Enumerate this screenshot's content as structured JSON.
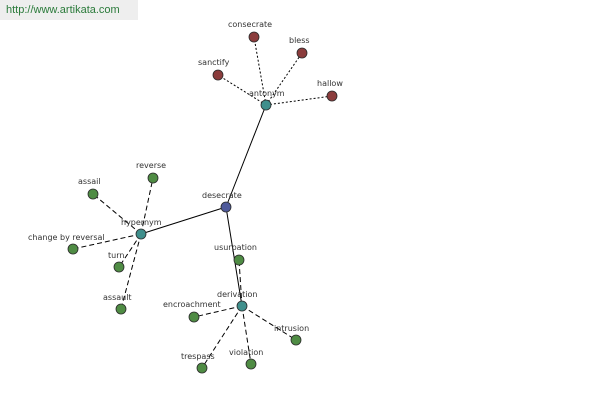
{
  "site": {
    "url": "http://www.artikata.com"
  },
  "colors": {
    "center": "#4f5a9b",
    "relation": "#3f8f8c",
    "green_leaf": "#4f8c44",
    "red_leaf": "#8b3c3c"
  },
  "graph": {
    "center": {
      "id": "desecrate",
      "label": "desecrate"
    },
    "relations": [
      {
        "id": "antonym",
        "label": "antonym"
      },
      {
        "id": "hypernym",
        "label": "hypernym"
      },
      {
        "id": "derivation",
        "label": "derivation"
      }
    ],
    "leaves": [
      {
        "id": "consecrate",
        "label": "consecrate",
        "parent": "antonym",
        "color": "red"
      },
      {
        "id": "bless",
        "label": "bless",
        "parent": "antonym",
        "color": "red"
      },
      {
        "id": "sanctify",
        "label": "sanctify",
        "parent": "antonym",
        "color": "red"
      },
      {
        "id": "hallow",
        "label": "hallow",
        "parent": "antonym",
        "color": "red"
      },
      {
        "id": "reverse",
        "label": "reverse",
        "parent": "hypernym",
        "color": "green"
      },
      {
        "id": "assail",
        "label": "assail",
        "parent": "hypernym",
        "color": "green"
      },
      {
        "id": "change-by-reversal",
        "label": "change by reversal",
        "parent": "hypernym",
        "color": "green"
      },
      {
        "id": "turn",
        "label": "turn",
        "parent": "hypernym",
        "color": "green"
      },
      {
        "id": "assault",
        "label": "assault",
        "parent": "hypernym",
        "color": "green"
      },
      {
        "id": "usurpation",
        "label": "usurpation",
        "parent": "derivation",
        "color": "green"
      },
      {
        "id": "encroachment",
        "label": "encroachment",
        "parent": "derivation",
        "color": "green"
      },
      {
        "id": "intrusion",
        "label": "intrusion",
        "parent": "derivation",
        "color": "green"
      },
      {
        "id": "trespass",
        "label": "trespass",
        "parent": "derivation",
        "color": "green"
      },
      {
        "id": "violation",
        "label": "violation",
        "parent": "derivation",
        "color": "green"
      }
    ]
  }
}
